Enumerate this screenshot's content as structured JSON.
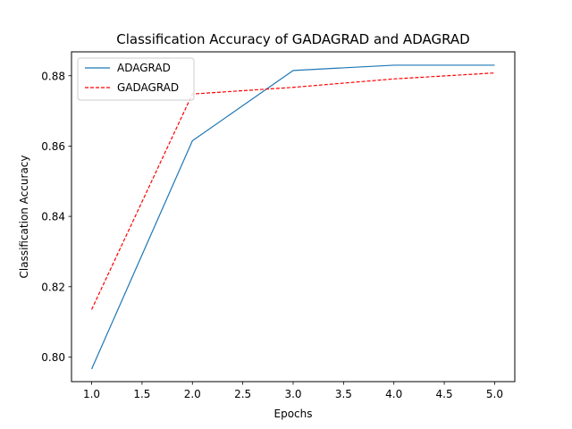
{
  "chart_data": {
    "type": "line",
    "title": "Classification Accuracy of GADAGRAD and ADAGRAD",
    "xlabel": "Epochs",
    "ylabel": "Classification Accuracy",
    "x": [
      1.0,
      2.0,
      3.0,
      4.0,
      5.0
    ],
    "xlim": [
      0.8,
      5.2
    ],
    "ylim": [
      0.793,
      0.8868
    ],
    "xticks": [
      1.0,
      1.5,
      2.0,
      2.5,
      3.0,
      3.5,
      4.0,
      4.5,
      5.0
    ],
    "xtick_labels": [
      "1.0",
      "1.5",
      "2.0",
      "2.5",
      "3.0",
      "3.5",
      "4.0",
      "4.5",
      "5.0"
    ],
    "yticks": [
      0.8,
      0.82,
      0.84,
      0.86,
      0.88
    ],
    "ytick_labels": [
      "0.80",
      "0.82",
      "0.84",
      "0.86",
      "0.88"
    ],
    "grid": false,
    "legend_position": "upper-left",
    "series": [
      {
        "name": "ADAGRAD",
        "values": [
          0.7966,
          0.8615,
          0.8815,
          0.883,
          0.883
        ],
        "color": "#1f77b4",
        "style": "solid"
      },
      {
        "name": "GADAGRAD",
        "values": [
          0.8135,
          0.8748,
          0.8767,
          0.8791,
          0.8808
        ],
        "color": "#ff0000",
        "style": "dashed"
      }
    ]
  }
}
